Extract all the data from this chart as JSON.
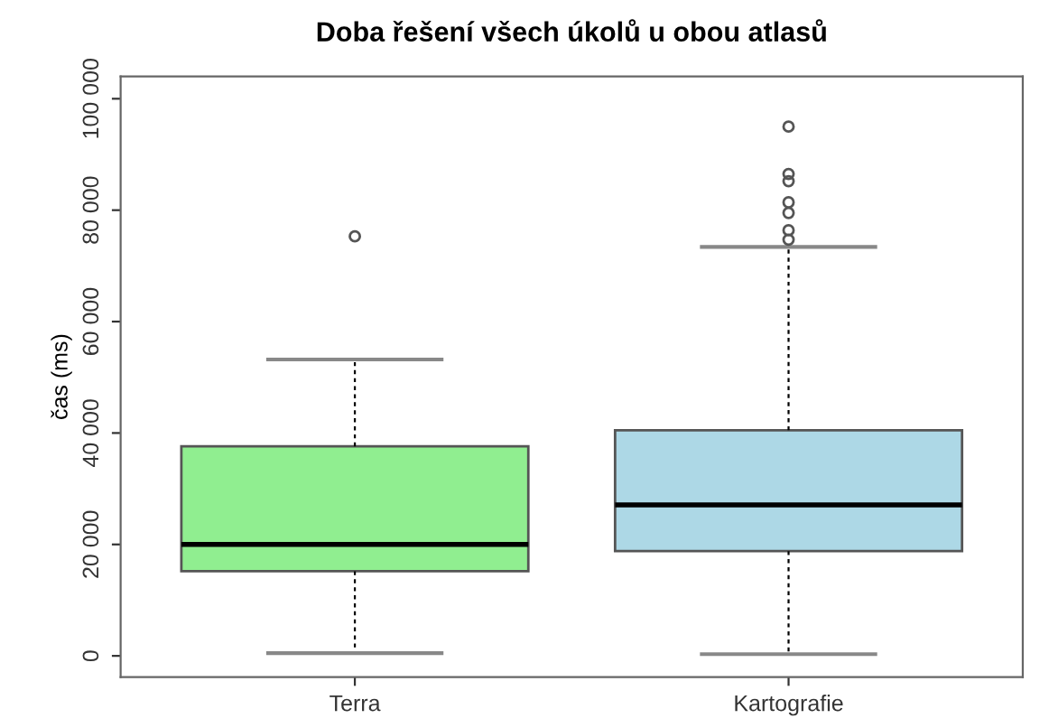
{
  "chart_data": {
    "type": "box",
    "title": "Doba řešení všech úkolů u obou atlasů",
    "ylabel": "čas (ms)",
    "categories": [
      "Terra",
      "Kartografie"
    ],
    "colors": [
      "#90ee90",
      "#add8e6"
    ],
    "boxes": [
      {
        "low": 500,
        "q1": 15200,
        "median": 20000,
        "q3": 37600,
        "high": 53200,
        "outliers": [
          75300
        ]
      },
      {
        "low": 300,
        "q1": 18800,
        "median": 27100,
        "q3": 40500,
        "high": 73400,
        "outliers": [
          95000,
          86500,
          85200,
          81400,
          79500,
          76400,
          74700
        ]
      }
    ],
    "ylim": [
      -3800,
      104000
    ],
    "yticks": [
      {
        "value": 0,
        "label": "0"
      },
      {
        "value": 20000,
        "label": "20 000"
      },
      {
        "value": 40000,
        "label": "40 000"
      },
      {
        "value": 60000,
        "label": "60 000"
      },
      {
        "value": 80000,
        "label": "80 000"
      },
      {
        "value": 100000,
        "label": "100 000"
      }
    ],
    "grid": false
  }
}
